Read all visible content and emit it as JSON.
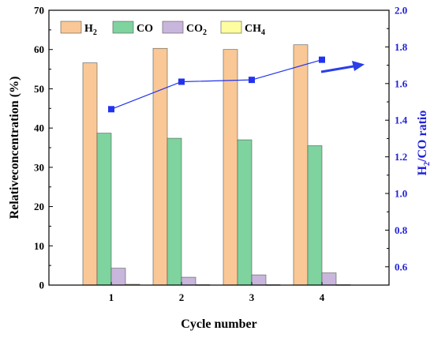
{
  "chart_data": {
    "type": "bar",
    "categories": [
      "1",
      "2",
      "3",
      "4"
    ],
    "series": [
      {
        "name": "H2",
        "legend_main": "H",
        "legend_sub": "2",
        "color": "#f9c896",
        "values": [
          56.6,
          60.3,
          60.0,
          61.2
        ]
      },
      {
        "name": "CO",
        "legend_main": "CO",
        "legend_sub": "",
        "color": "#7ed39e",
        "values": [
          38.7,
          37.4,
          37.0,
          35.5
        ]
      },
      {
        "name": "CO2",
        "legend_main": "CO",
        "legend_sub": "2",
        "color": "#c9b6dc",
        "values": [
          4.3,
          2.0,
          2.6,
          3.1
        ]
      },
      {
        "name": "CH4",
        "legend_main": "CH",
        "legend_sub": "4",
        "color": "#fefea0",
        "values": [
          0.2,
          0.1,
          0.1,
          0.1
        ]
      }
    ],
    "line_series": {
      "name": "H2/CO ratio",
      "axis": "right",
      "color": "#2233ee",
      "values": [
        1.46,
        1.61,
        1.62,
        1.73
      ]
    },
    "xlabel": "Cycle number",
    "ylabel": "Relativeconcentration (%)",
    "y2label_main": "H",
    "y2label_sub": "2",
    "y2label_rest": "/CO ratio",
    "ylim": [
      0,
      70
    ],
    "yticks": [
      "0",
      "10",
      "20",
      "30",
      "40",
      "50",
      "60",
      "70"
    ],
    "y2lim": [
      0.5,
      2.0
    ],
    "y2ticks": [
      "0.6",
      "0.8",
      "1.0",
      "1.2",
      "1.4",
      "1.6",
      "1.8",
      "2.0"
    ],
    "legend_position": "top-left",
    "grid": false,
    "annotation": "arrow pointing upward-right indicating increasing trend"
  }
}
